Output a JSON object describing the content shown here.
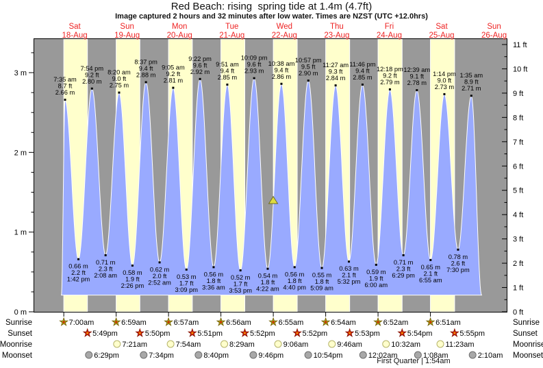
{
  "header": {
    "title": "Red Beach: rising  spring tide at 1.4m (4.7ft)",
    "subtitle": "Image captured 2 hours and 32 minutes after low water. Times are NZST (UTC +12.0hrs)"
  },
  "chart_data": {
    "type": "area",
    "title": "Red Beach: rising  spring tide at 1.4m (4.7ft)",
    "ylim_m": [
      0,
      3.42
    ],
    "y_left_tick_labels": [
      "0 m",
      "1 m",
      "2 m",
      "3 m"
    ],
    "y_right_tick_labels": [
      "0 ft",
      "1 ft",
      "2 ft",
      "3 ft",
      "4 ft",
      "5 ft",
      "6 ft",
      "7 ft",
      "8 ft",
      "9 ft",
      "10 ft",
      "11 ft"
    ],
    "days": [
      {
        "name": "Sat",
        "date": "18-Aug"
      },
      {
        "name": "Sun",
        "date": "19-Aug"
      },
      {
        "name": "Mon",
        "date": "20-Aug"
      },
      {
        "name": "Tue",
        "date": "21-Aug"
      },
      {
        "name": "Wed",
        "date": "22-Aug"
      },
      {
        "name": "Thu",
        "date": "23-Aug"
      },
      {
        "name": "Fri",
        "date": "24-Aug"
      },
      {
        "name": "Sat",
        "date": "25-Aug"
      },
      {
        "name": "Sun",
        "date": "26-Aug"
      }
    ],
    "tide_events": [
      {
        "type": "high",
        "t": 7.583,
        "height_m": 2.66,
        "time": "7:35 am",
        "ft": "8.7 ft",
        "m": "2.66 m"
      },
      {
        "type": "low",
        "t": 13.7,
        "height_m": 0.66,
        "time": "1:42 pm",
        "ft": "2.2 ft",
        "m": "0.66 m"
      },
      {
        "type": "high",
        "t": 19.9,
        "height_m": 2.8,
        "time": "7:54 pm",
        "ft": "9.2 ft",
        "m": "2.80 m"
      },
      {
        "type": "low",
        "t": 26.133,
        "height_m": 0.71,
        "time": "2:08 am",
        "ft": "2.3 ft",
        "m": "0.71 m"
      },
      {
        "type": "high",
        "t": 32.333,
        "height_m": 2.75,
        "time": "8:20 am",
        "ft": "9.0 ft",
        "m": "2.75 m"
      },
      {
        "type": "low",
        "t": 38.433,
        "height_m": 0.58,
        "time": "2:26 pm",
        "ft": "1.9 ft",
        "m": "0.58 m"
      },
      {
        "type": "high",
        "t": 44.617,
        "height_m": 2.88,
        "time": "8:37 pm",
        "ft": "9.4 ft",
        "m": "2.88 m"
      },
      {
        "type": "low",
        "t": 50.867,
        "height_m": 0.62,
        "time": "2:52 am",
        "ft": "2.0 ft",
        "m": "0.62 m"
      },
      {
        "type": "high",
        "t": 57.083,
        "height_m": 2.81,
        "time": "9:05 am",
        "ft": "9.2 ft",
        "m": "2.81 m"
      },
      {
        "type": "low",
        "t": 63.15,
        "height_m": 0.53,
        "time": "3:09 pm",
        "ft": "1.7 ft",
        "m": "0.53 m"
      },
      {
        "type": "high",
        "t": 69.367,
        "height_m": 2.92,
        "time": "9:22 pm",
        "ft": "9.6 ft",
        "m": "2.92 m"
      },
      {
        "type": "low",
        "t": 75.6,
        "height_m": 0.56,
        "time": "3:36 am",
        "ft": "1.8 ft",
        "m": "0.56 m"
      },
      {
        "type": "high",
        "t": 81.85,
        "height_m": 2.85,
        "time": "9:51 am",
        "ft": "9.4 ft",
        "m": "2.85 m"
      },
      {
        "type": "low",
        "t": 87.883,
        "height_m": 0.52,
        "time": "3:53 pm",
        "ft": "1.7 ft",
        "m": "0.52 m"
      },
      {
        "type": "high",
        "t": 94.15,
        "height_m": 2.93,
        "time": "10:09 pm",
        "ft": "9.6 ft",
        "m": "2.93 m"
      },
      {
        "type": "low",
        "t": 100.367,
        "height_m": 0.54,
        "time": "4:22 am",
        "ft": "1.8 ft",
        "m": "0.54 m"
      },
      {
        "type": "high",
        "t": 106.633,
        "height_m": 2.86,
        "time": "10:38 am",
        "ft": "9.4 ft",
        "m": "2.86 m"
      },
      {
        "type": "low",
        "t": 112.667,
        "height_m": 0.56,
        "time": "4:40 pm",
        "ft": "1.8 ft",
        "m": "0.56 m"
      },
      {
        "type": "high",
        "t": 118.95,
        "height_m": 2.9,
        "time": "10:57 pm",
        "ft": "9.5 ft",
        "m": "2.90 m"
      },
      {
        "type": "low",
        "t": 125.15,
        "height_m": 0.55,
        "time": "5:09 am",
        "ft": "1.8 ft",
        "m": "0.55 m"
      },
      {
        "type": "high",
        "t": 131.45,
        "height_m": 2.84,
        "time": "11:27 am",
        "ft": "9.3 ft",
        "m": "2.84 m"
      },
      {
        "type": "low",
        "t": 137.533,
        "height_m": 0.63,
        "time": "5:32 pm",
        "ft": "2.1 ft",
        "m": "0.63 m"
      },
      {
        "type": "high",
        "t": 143.767,
        "height_m": 2.85,
        "time": "11:46 pm",
        "ft": "9.4 ft",
        "m": "2.85 m"
      },
      {
        "type": "low",
        "t": 150.0,
        "height_m": 0.59,
        "time": "6:00 am",
        "ft": "1.9 ft",
        "m": "0.59 m"
      },
      {
        "type": "high",
        "t": 156.3,
        "height_m": 2.79,
        "time": "12:18 pm",
        "ft": "9.2 ft",
        "m": "2.79 m"
      },
      {
        "type": "low",
        "t": 162.483,
        "height_m": 0.71,
        "time": "6:29 pm",
        "ft": "2.3 ft",
        "m": "0.71 m"
      },
      {
        "type": "high",
        "t": 168.65,
        "height_m": 2.78,
        "time": "12:39 am",
        "ft": "9.1 ft",
        "m": "2.78 m"
      },
      {
        "type": "low",
        "t": 174.917,
        "height_m": 0.65,
        "time": "6:55 am",
        "ft": "2.1 ft",
        "m": "0.65 m"
      },
      {
        "type": "high",
        "t": 181.233,
        "height_m": 2.73,
        "time": "1:14 pm",
        "ft": "9.0 ft",
        "m": "2.73 m"
      },
      {
        "type": "low",
        "t": 187.5,
        "height_m": 0.78,
        "time": "7:30 pm",
        "ft": "2.6 ft",
        "m": "0.78 m"
      },
      {
        "type": "high",
        "t": 193.583,
        "height_m": 2.71,
        "time": "1:35 am",
        "ft": "8.9 ft",
        "m": "2.71 m"
      }
    ],
    "curve_edge_points": [
      {
        "t": 5.9,
        "height_m": 0.21
      },
      {
        "t": 198.3,
        "height_m": 0.21
      }
    ],
    "current_level_marker": {
      "t": 102.9,
      "height_m": 1.4
    },
    "colors": {
      "night_band": "#999999",
      "day_band": "#ffffcc",
      "tide_fill": "#99aaff",
      "curve_stroke": "#ffffff",
      "day_label": "#ee2222",
      "annotation": "#000000",
      "marker_fill": "#dedb3f",
      "marker_stroke": "#6b6b2a",
      "sunrise_star": "#b9aa1b",
      "sunrise_star_stroke": "#77660a",
      "sunrise_star_center": "#cc2200",
      "sunset_star": "#dd2200",
      "sunset_star_stroke": "#881100",
      "sunset_star_center": "#ee8800",
      "moonrise_circle": "#ffffcc",
      "moonrise_circle_stroke": "#b5b36a",
      "moonset_circle": "#a8a8a8",
      "moonset_circle_stroke": "#6e6e6e"
    }
  },
  "astro": {
    "rows": [
      {
        "label": "Sunrise",
        "icon": "sunrise-icon",
        "events": [
          {
            "t": 7.0,
            "time": "7:00am"
          },
          {
            "t": 30.983,
            "time": "6:59am"
          },
          {
            "t": 54.95,
            "time": "6:57am"
          },
          {
            "t": 78.933,
            "time": "6:56am"
          },
          {
            "t": 102.917,
            "time": "6:55am"
          },
          {
            "t": 126.9,
            "time": "6:54am"
          },
          {
            "t": 150.867,
            "time": "6:52am"
          },
          {
            "t": 174.85,
            "time": "6:51am"
          }
        ]
      },
      {
        "label": "Sunset",
        "icon": "sunset-icon",
        "events": [
          {
            "t": 17.817,
            "time": "5:49pm"
          },
          {
            "t": 41.833,
            "time": "5:50pm"
          },
          {
            "t": 65.85,
            "time": "5:51pm"
          },
          {
            "t": 89.867,
            "time": "5:52pm"
          },
          {
            "t": 113.867,
            "time": "5:52pm"
          },
          {
            "t": 137.883,
            "time": "5:53pm"
          },
          {
            "t": 161.9,
            "time": "5:54pm"
          },
          {
            "t": 185.917,
            "time": "5:55pm"
          }
        ]
      },
      {
        "label": "Moonrise",
        "icon": "moonrise-icon",
        "events": [
          {
            "t": 31.35,
            "time": "7:21am"
          },
          {
            "t": 55.9,
            "time": "7:54am"
          },
          {
            "t": 80.483,
            "time": "8:29am"
          },
          {
            "t": 105.1,
            "time": "9:06am"
          },
          {
            "t": 129.767,
            "time": "9:46am"
          },
          {
            "t": 154.533,
            "time": "10:32am"
          },
          {
            "t": 179.383,
            "time": "11:23am"
          }
        ]
      },
      {
        "label": "Moonset",
        "icon": "moonset-icon",
        "events": [
          {
            "t": 18.483,
            "time": "6:29pm"
          },
          {
            "t": 43.567,
            "time": "7:34pm"
          },
          {
            "t": 68.667,
            "time": "8:40pm"
          },
          {
            "t": 93.767,
            "time": "9:46pm"
          },
          {
            "t": 118.9,
            "time": "10:54pm"
          },
          {
            "t": 144.033,
            "time": "12:02am"
          },
          {
            "t": 169.133,
            "time": "1:08am"
          },
          {
            "t": 194.167,
            "time": "2:10am"
          }
        ]
      }
    ],
    "moon_phase_note": "First Quarter | 1:54am"
  }
}
